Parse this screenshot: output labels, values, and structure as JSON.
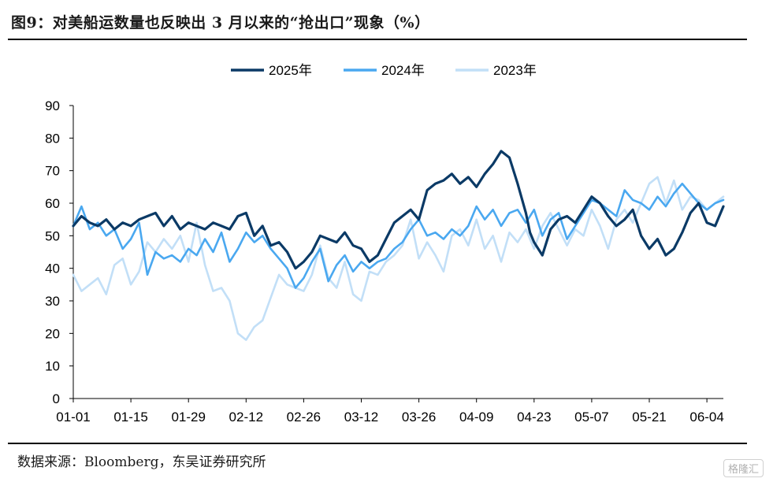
{
  "header": {
    "title": "图9：对美船运数量也反映出 3 月以来的“抢出口”现象（%）"
  },
  "footer": {
    "source": "数据来源：Bloomberg，东吴证券研究所",
    "watermark": "格隆汇"
  },
  "chart_data": {
    "type": "line",
    "title": "",
    "xlabel": "",
    "ylabel": "",
    "ylim": [
      0,
      90
    ],
    "yticks": [
      0,
      10,
      20,
      30,
      40,
      50,
      60,
      70,
      80,
      90
    ],
    "xlim": [
      0,
      158
    ],
    "xticks": [
      {
        "day": 0,
        "label": "01-01"
      },
      {
        "day": 14,
        "label": "01-15"
      },
      {
        "day": 28,
        "label": "01-29"
      },
      {
        "day": 42,
        "label": "02-12"
      },
      {
        "day": 56,
        "label": "02-26"
      },
      {
        "day": 70,
        "label": "03-12"
      },
      {
        "day": 84,
        "label": "03-26"
      },
      {
        "day": 98,
        "label": "04-09"
      },
      {
        "day": 112,
        "label": "04-23"
      },
      {
        "day": 126,
        "label": "05-07"
      },
      {
        "day": 140,
        "label": "05-21"
      },
      {
        "day": 154,
        "label": "06-04"
      }
    ],
    "grid": false,
    "legend_position": "top-center",
    "series": [
      {
        "name": "2025年",
        "color": "#0b3a66",
        "width": 3.2,
        "x": [
          0,
          2,
          4,
          6,
          8,
          10,
          12,
          14,
          16,
          18,
          20,
          22,
          24,
          26,
          28,
          30,
          32,
          34,
          36,
          38,
          40,
          42,
          44,
          46,
          48,
          50,
          52,
          54,
          56,
          58,
          60,
          62,
          64,
          66,
          68,
          70,
          72,
          74,
          76,
          78,
          80,
          82,
          84,
          86,
          88,
          90,
          92,
          94,
          96,
          98,
          100,
          102,
          104,
          106,
          108,
          110,
          111,
          112,
          114,
          116,
          118,
          120,
          122,
          124,
          126,
          128,
          130,
          132,
          134,
          136,
          138,
          140,
          142,
          144,
          146,
          148,
          150,
          152,
          154,
          156,
          158
        ],
        "y": [
          53,
          56,
          54,
          53,
          55,
          52,
          54,
          53,
          55,
          56,
          57,
          53,
          56,
          52,
          54,
          53,
          52,
          54,
          53,
          52,
          56,
          57,
          50,
          53,
          47,
          48,
          45,
          40,
          42,
          45,
          50,
          49,
          48,
          51,
          47,
          46,
          42,
          44,
          49,
          54,
          56,
          58,
          55,
          64,
          66,
          67,
          69,
          66,
          68,
          65,
          69,
          72,
          76,
          74,
          66,
          57,
          51,
          48,
          44,
          52,
          55,
          56,
          54,
          58,
          62,
          60,
          56,
          53,
          55,
          58,
          50,
          46,
          49,
          44,
          46,
          51,
          57,
          60,
          54,
          53,
          59
        ]
      },
      {
        "name": "2024年",
        "color": "#4aa8f0",
        "width": 2.6,
        "x": [
          0,
          2,
          4,
          6,
          8,
          10,
          12,
          14,
          16,
          18,
          20,
          22,
          24,
          26,
          28,
          30,
          32,
          34,
          36,
          38,
          40,
          42,
          44,
          46,
          48,
          50,
          52,
          54,
          56,
          58,
          60,
          62,
          64,
          66,
          68,
          70,
          72,
          74,
          76,
          78,
          80,
          82,
          84,
          86,
          88,
          90,
          92,
          94,
          96,
          98,
          100,
          102,
          104,
          106,
          108,
          110,
          112,
          114,
          116,
          118,
          120,
          122,
          124,
          126,
          128,
          130,
          132,
          134,
          136,
          138,
          140,
          142,
          144,
          146,
          148,
          150,
          152,
          154,
          156,
          158
        ],
        "y": [
          53,
          59,
          52,
          54,
          50,
          52,
          46,
          49,
          54,
          38,
          45,
          43,
          44,
          42,
          46,
          44,
          49,
          45,
          51,
          42,
          46,
          51,
          48,
          50,
          46,
          43,
          40,
          34,
          37,
          42,
          46,
          36,
          41,
          44,
          39,
          42,
          40,
          42,
          43,
          46,
          48,
          52,
          55,
          50,
          51,
          49,
          52,
          50,
          53,
          59,
          55,
          58,
          53,
          57,
          58,
          54,
          58,
          50,
          55,
          57,
          49,
          53,
          57,
          61,
          60,
          58,
          56,
          64,
          61,
          60,
          58,
          62,
          59,
          63,
          66,
          63,
          60,
          58,
          60,
          61
        ]
      },
      {
        "name": "2023年",
        "color": "#c2dff7",
        "width": 2.6,
        "x": [
          0,
          2,
          4,
          6,
          8,
          10,
          12,
          14,
          16,
          18,
          20,
          22,
          24,
          26,
          28,
          30,
          32,
          34,
          36,
          38,
          40,
          42,
          44,
          46,
          48,
          50,
          52,
          54,
          56,
          58,
          60,
          62,
          64,
          66,
          68,
          70,
          72,
          74,
          76,
          78,
          80,
          82,
          84,
          86,
          88,
          90,
          92,
          94,
          96,
          98,
          100,
          102,
          104,
          106,
          108,
          110,
          112,
          114,
          116,
          118,
          120,
          122,
          124,
          126,
          128,
          130,
          132,
          134,
          136,
          138,
          140,
          142,
          144,
          146,
          148,
          150,
          152,
          154,
          156,
          158
        ],
        "y": [
          38,
          33,
          35,
          37,
          32,
          41,
          43,
          35,
          39,
          48,
          45,
          49,
          46,
          50,
          42,
          54,
          41,
          33,
          34,
          30,
          20,
          18,
          22,
          24,
          31,
          38,
          35,
          34,
          33,
          38,
          47,
          37,
          34,
          42,
          32,
          30,
          39,
          38,
          42,
          44,
          47,
          55,
          43,
          48,
          44,
          39,
          50,
          52,
          47,
          55,
          46,
          50,
          42,
          51,
          48,
          52,
          46,
          53,
          57,
          52,
          47,
          52,
          50,
          58,
          53,
          46,
          55,
          58,
          54,
          60,
          66,
          68,
          60,
          67,
          58,
          62,
          61,
          58,
          60,
          62
        ]
      }
    ]
  }
}
